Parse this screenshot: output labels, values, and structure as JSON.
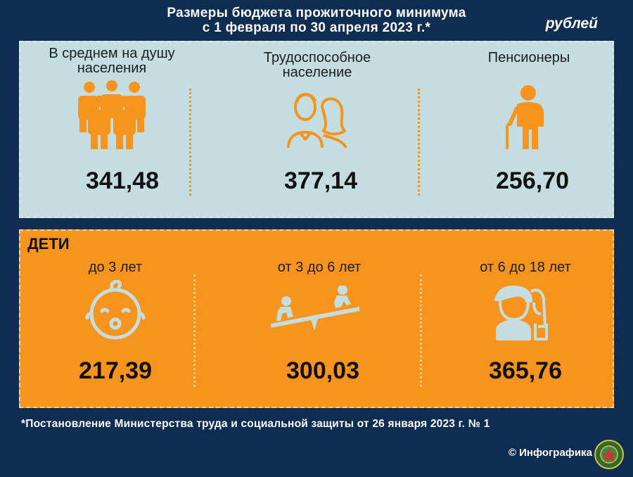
{
  "header": {
    "title_line1": "Размеры бюджета прожиточного минимума",
    "title_line2": "с 1 февраля по 30 апреля 2023 г.*",
    "unit": "рублей"
  },
  "adults": [
    {
      "label_line1": "В среднем на душу",
      "label_line2": "населения",
      "value": "341,48",
      "icon": "crowd-icon"
    },
    {
      "label_line1": "Трудоспособное",
      "label_line2": "население",
      "value": "377,14",
      "icon": "couple-icon"
    },
    {
      "label_line1": "Пенсионеры",
      "label_line2": "",
      "value": "256,70",
      "icon": "elderly-person-icon"
    }
  ],
  "children": {
    "heading": "ДЕТИ",
    "groups": [
      {
        "label": "до 3 лет",
        "value": "217,39",
        "icon": "baby-icon"
      },
      {
        "label": "от 3 до 6 лет",
        "value": "300,03",
        "icon": "seesaw-icon"
      },
      {
        "label": "от 6 до 18 лет",
        "value": "365,76",
        "icon": "teenagers-icon"
      }
    ]
  },
  "footer": {
    "footnote": "*Постановление Министерства труда и социальной защиты от 26 января 2023 г. № 1",
    "credit": "© Инфографика"
  },
  "colors": {
    "background": "#0f2d52",
    "adults_panel": "#c3dde1",
    "kids_panel": "#f7941d",
    "accent": "#f7941d",
    "icon_light": "#c3dde1"
  }
}
